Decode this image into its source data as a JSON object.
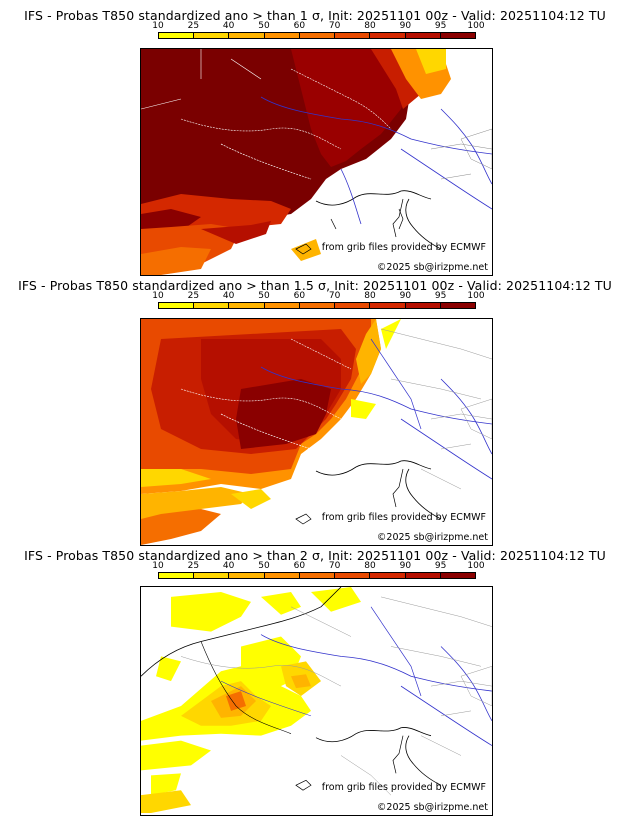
{
  "panels": [
    {
      "title": "IFS - Probas T850  standardized ano > than 1 σ, Init: 20251101 00z - Valid: 20251104:12 TU",
      "credit_source": "from grib files provided by ECMWF",
      "credit_copyright": "©2025 sb@irizpme.net"
    },
    {
      "title": "IFS - Probas T850  standardized ano > than 1.5 σ, Init: 20251101 00z - Valid: 20251104:12 TU",
      "credit_source": "from grib files provided by ECMWF",
      "credit_copyright": "©2025 sb@irizpme.net"
    },
    {
      "title": "IFS - Probas T850  standardized ano > than 2 σ, Init: 20251101 00z - Valid: 20251104:12 TU",
      "credit_source": "from grib files provided by ECMWF",
      "credit_copyright": "©2025 sb@irizpme.net"
    }
  ],
  "colorbar": {
    "labels": [
      "10",
      "25",
      "40",
      "50",
      "60",
      "70",
      "80",
      "90",
      "95",
      "100"
    ],
    "colors": [
      "#ffff00",
      "#ffd700",
      "#ffb400",
      "#ff9200",
      "#f56e00",
      "#e84a00",
      "#d42800",
      "#b50f00",
      "#8a0000"
    ]
  }
}
